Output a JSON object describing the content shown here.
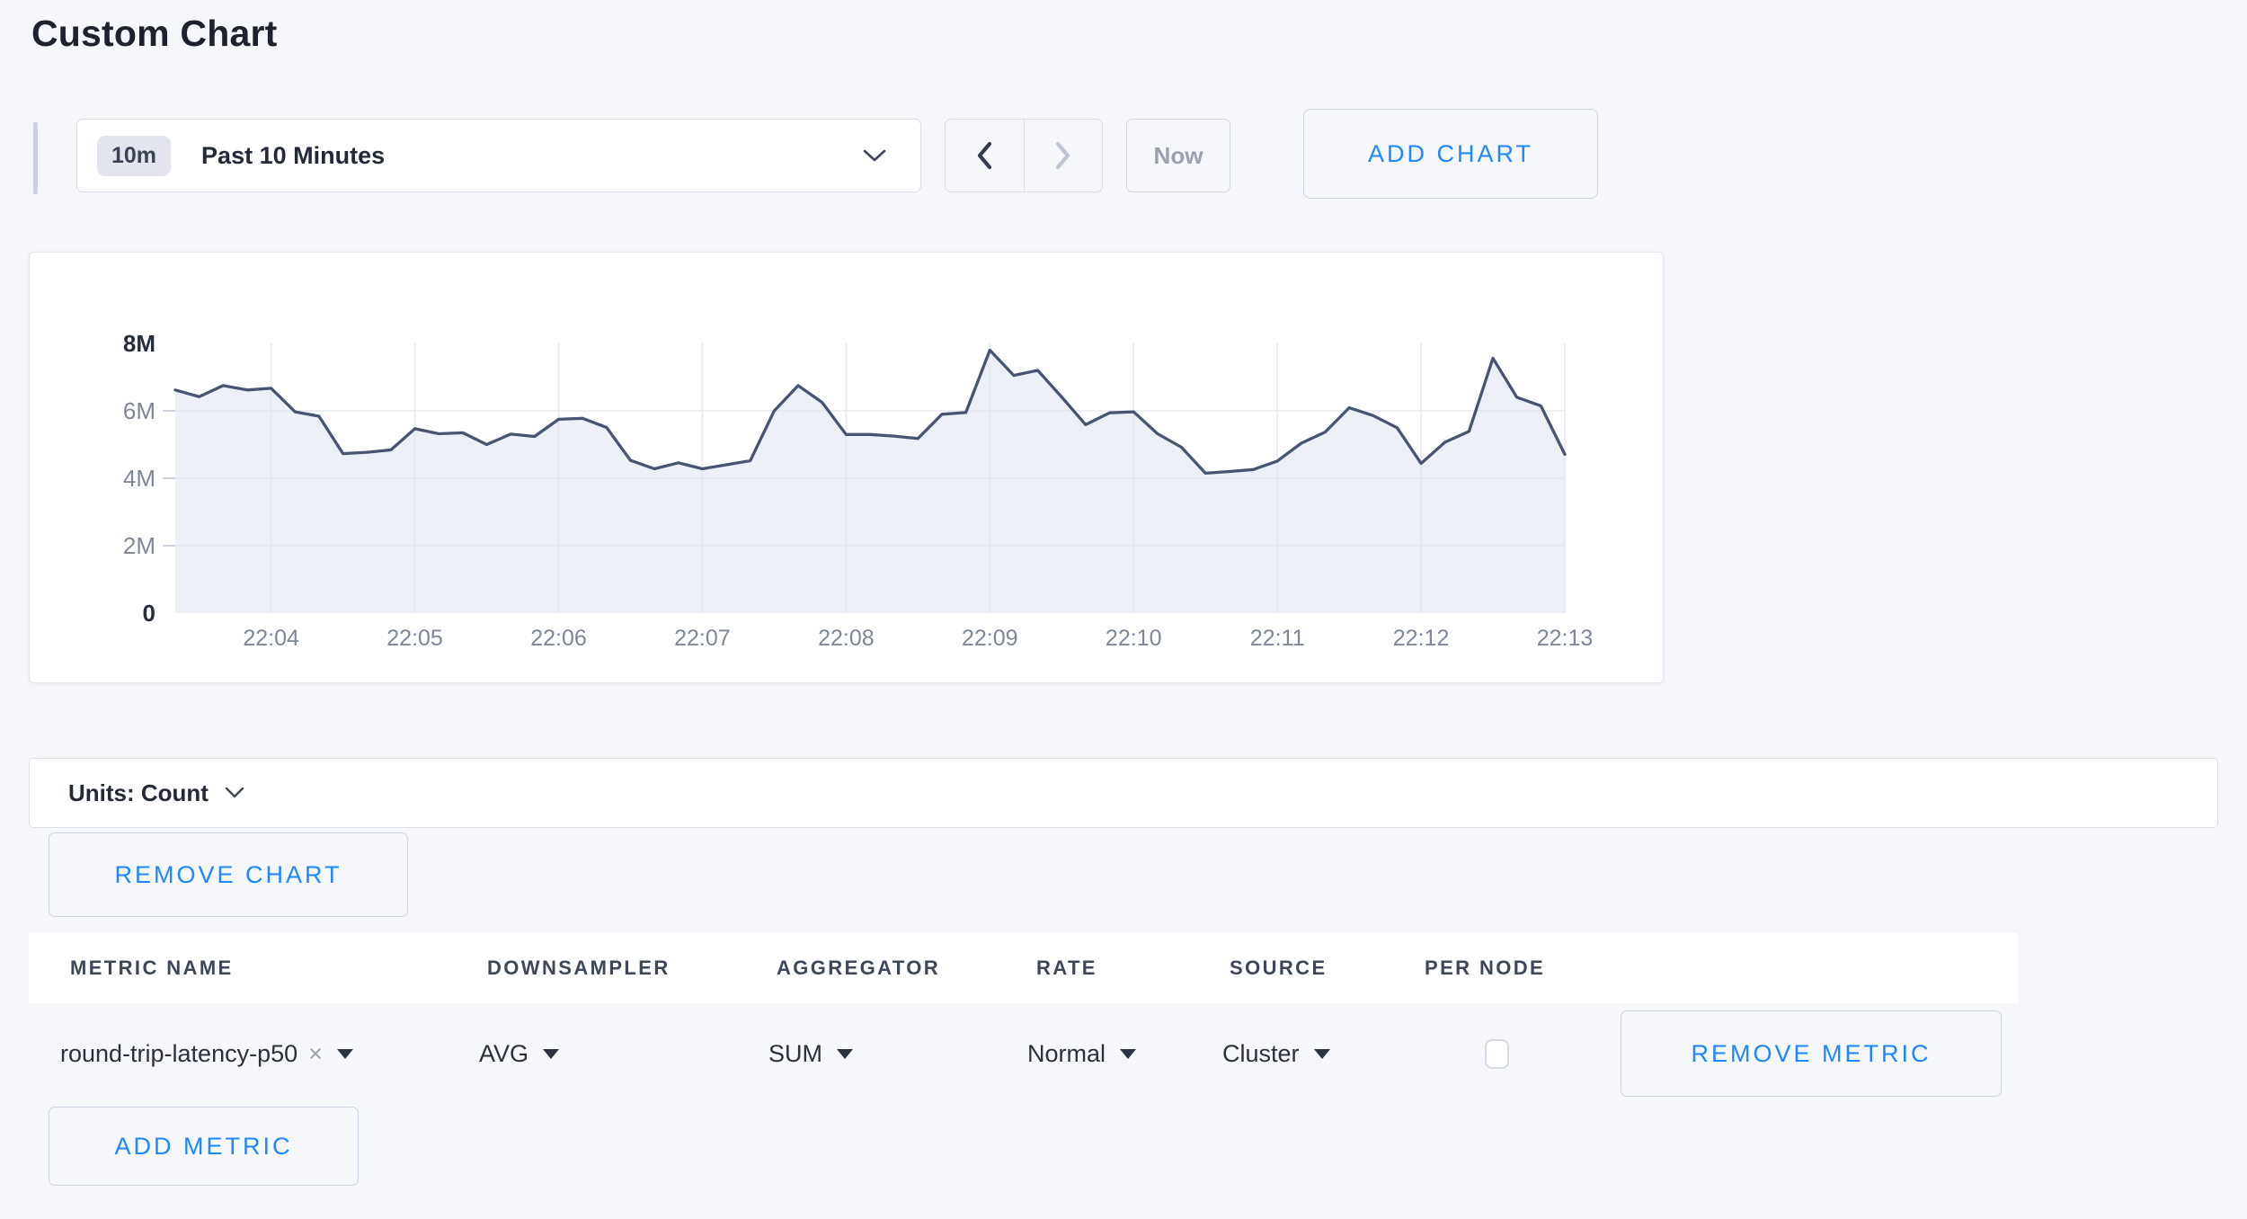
{
  "page": {
    "title": "Custom Chart",
    "background": "#f5f7fa",
    "accent_blue": "#1f87ff"
  },
  "toolbar": {
    "range_badge": "10m",
    "range_label": "Past 10 Minutes",
    "prev_icon": "chevron-left",
    "next_icon": "chevron-right",
    "now_label": "Now",
    "add_chart_label": "ADD CHART"
  },
  "chart_data": {
    "type": "area",
    "series": [
      {
        "name": "round-trip-latency-p50",
        "unit": "count",
        "values_millions": [
          6.62,
          6.42,
          6.75,
          6.62,
          6.67,
          5.97,
          5.84,
          4.73,
          4.77,
          4.84,
          5.47,
          5.32,
          5.35,
          5.0,
          5.31,
          5.24,
          5.75,
          5.78,
          5.51,
          4.53,
          4.28,
          4.46,
          4.28,
          4.4,
          4.52,
          6.0,
          6.75,
          6.25,
          5.3,
          5.3,
          5.25,
          5.18,
          5.9,
          5.95,
          7.8,
          7.05,
          7.2,
          6.41,
          5.59,
          5.94,
          5.97,
          5.32,
          4.92,
          4.15,
          4.2,
          4.26,
          4.51,
          5.04,
          5.37,
          6.09,
          5.86,
          5.5,
          4.44,
          5.07,
          5.39,
          7.56,
          6.4,
          6.15,
          4.71
        ]
      }
    ],
    "x_range": {
      "start": "22:03:20",
      "end": "22:13:00",
      "interval_seconds": 10
    },
    "x_tick_labels": [
      "22:04",
      "22:05",
      "22:06",
      "22:07",
      "22:08",
      "22:09",
      "22:10",
      "22:11",
      "22:12",
      "22:13"
    ],
    "first_tick_index": 4,
    "tick_step": 6,
    "y_ticks": [
      {
        "label": "8M",
        "value_millions": 8,
        "strong": true
      },
      {
        "label": "6M",
        "value_millions": 6,
        "strong": false
      },
      {
        "label": "4M",
        "value_millions": 4,
        "strong": false
      },
      {
        "label": "2M",
        "value_millions": 2,
        "strong": false
      },
      {
        "label": "0",
        "value_millions": 0,
        "strong": true
      }
    ],
    "ylim_millions": [
      0,
      8
    ],
    "grid": true,
    "legend": "none",
    "line_color": "#475571",
    "fill_color": "#dfe4ee",
    "grid_color": "#e7eaf1",
    "tick_color": "#ccd2dd",
    "axis_label_color": "#7e8797",
    "axis_label_strong_color": "#262d3a"
  },
  "units_bar": {
    "label": "Units: Count"
  },
  "chart_actions": {
    "remove_chart_label": "REMOVE CHART",
    "add_metric_label": "ADD METRIC"
  },
  "metrics_table": {
    "headers": [
      "METRIC NAME",
      "DOWNSAMPLER",
      "AGGREGATOR",
      "RATE",
      "SOURCE",
      "PER NODE"
    ],
    "rows": [
      {
        "metric_name": "round-trip-latency-p50",
        "clear_icon": "x",
        "downsampler": "AVG",
        "aggregator": "SUM",
        "rate": "Normal",
        "source": "Cluster",
        "per_node_checked": false,
        "remove_label": "REMOVE METRIC"
      }
    ]
  }
}
